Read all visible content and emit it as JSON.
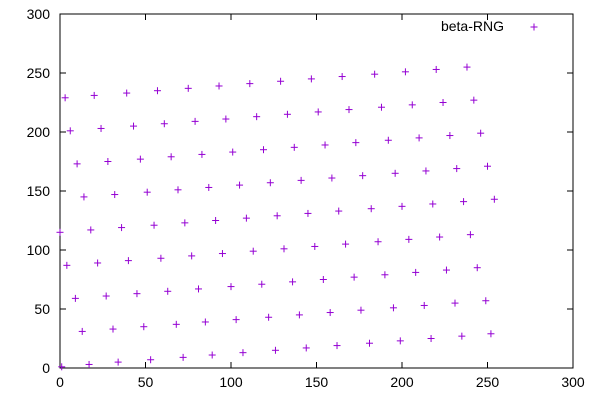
{
  "chart_data": {
    "type": "scatter",
    "title": "",
    "xlabel": "",
    "ylabel": "",
    "xlim": [
      0,
      300
    ],
    "ylim": [
      0,
      300
    ],
    "x_ticks": [
      "0",
      "50",
      "100",
      "150",
      "200",
      "250",
      "300"
    ],
    "y_ticks": [
      "0",
      "50",
      "100",
      "150",
      "200",
      "250",
      "300"
    ],
    "grid": false,
    "legend_position": "top-right",
    "marker": "plus",
    "series": [
      {
        "name": "beta-RNG",
        "color": "#9400d3",
        "points": [
          [
            1,
            1
          ],
          [
            17,
            3
          ],
          [
            34,
            5
          ],
          [
            53,
            7
          ],
          [
            72,
            9
          ],
          [
            89,
            11
          ],
          [
            107,
            13
          ],
          [
            126,
            15
          ],
          [
            144,
            17
          ],
          [
            162,
            19
          ],
          [
            181,
            21
          ],
          [
            199,
            23
          ],
          [
            217,
            25
          ],
          [
            235,
            27
          ],
          [
            252,
            29
          ],
          [
            13,
            31
          ],
          [
            31,
            33
          ],
          [
            49,
            35
          ],
          [
            68,
            37
          ],
          [
            85,
            39
          ],
          [
            103,
            41
          ],
          [
            122,
            43
          ],
          [
            140,
            45
          ],
          [
            158,
            47
          ],
          [
            176,
            49
          ],
          [
            195,
            51
          ],
          [
            213,
            53
          ],
          [
            231,
            55
          ],
          [
            249,
            57
          ],
          [
            9,
            59
          ],
          [
            27,
            61
          ],
          [
            45,
            63
          ],
          [
            63,
            65
          ],
          [
            81,
            67
          ],
          [
            100,
            69
          ],
          [
            118,
            71
          ],
          [
            136,
            73
          ],
          [
            154,
            75
          ],
          [
            172,
            77
          ],
          [
            190,
            79
          ],
          [
            208,
            81
          ],
          [
            226,
            83
          ],
          [
            244,
            85
          ],
          [
            4,
            87
          ],
          [
            22,
            89
          ],
          [
            40,
            91
          ],
          [
            59,
            93
          ],
          [
            77,
            95
          ],
          [
            95,
            97
          ],
          [
            113,
            99
          ],
          [
            131,
            101
          ],
          [
            149,
            103
          ],
          [
            167,
            105
          ],
          [
            186,
            107
          ],
          [
            204,
            109
          ],
          [
            222,
            111
          ],
          [
            240,
            113
          ],
          [
            0,
            115
          ],
          [
            18,
            117
          ],
          [
            36,
            119
          ],
          [
            55,
            121
          ],
          [
            73,
            123
          ],
          [
            91,
            125
          ],
          [
            109,
            127
          ],
          [
            127,
            129
          ],
          [
            145,
            131
          ],
          [
            163,
            133
          ],
          [
            182,
            135
          ],
          [
            200,
            137
          ],
          [
            218,
            139
          ],
          [
            236,
            141
          ],
          [
            254,
            143
          ],
          [
            14,
            145
          ],
          [
            32,
            147
          ],
          [
            51,
            149
          ],
          [
            69,
            151
          ],
          [
            87,
            153
          ],
          [
            105,
            155
          ],
          [
            123,
            157
          ],
          [
            141,
            159
          ],
          [
            159,
            161
          ],
          [
            177,
            163
          ],
          [
            196,
            165
          ],
          [
            214,
            167
          ],
          [
            232,
            169
          ],
          [
            250,
            171
          ],
          [
            10,
            173
          ],
          [
            28,
            175
          ],
          [
            47,
            177
          ],
          [
            65,
            179
          ],
          [
            83,
            181
          ],
          [
            101,
            183
          ],
          [
            119,
            185
          ],
          [
            137,
            187
          ],
          [
            155,
            189
          ],
          [
            173,
            191
          ],
          [
            192,
            193
          ],
          [
            210,
            195
          ],
          [
            228,
            197
          ],
          [
            246,
            199
          ],
          [
            6,
            201
          ],
          [
            24,
            203
          ],
          [
            43,
            205
          ],
          [
            61,
            207
          ],
          [
            79,
            209
          ],
          [
            97,
            211
          ],
          [
            115,
            213
          ],
          [
            133,
            215
          ],
          [
            151,
            217
          ],
          [
            169,
            219
          ],
          [
            188,
            221
          ],
          [
            206,
            223
          ],
          [
            224,
            225
          ],
          [
            242,
            227
          ],
          [
            3,
            229
          ],
          [
            20,
            231
          ],
          [
            39,
            233
          ],
          [
            57,
            235
          ],
          [
            75,
            237
          ],
          [
            93,
            239
          ],
          [
            111,
            241
          ],
          [
            129,
            243
          ],
          [
            147,
            245
          ],
          [
            165,
            247
          ],
          [
            184,
            249
          ],
          [
            202,
            251
          ],
          [
            220,
            253
          ],
          [
            238,
            255
          ]
        ]
      }
    ]
  }
}
